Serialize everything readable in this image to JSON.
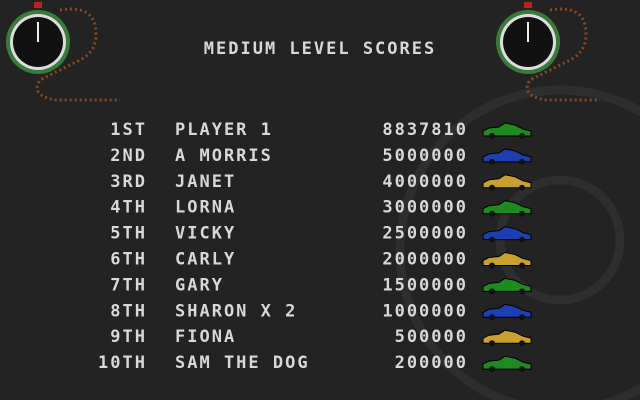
{
  "title": "MEDIUM LEVEL SCORES",
  "rows": [
    {
      "rank": "1ST",
      "name": "PLAYER 1",
      "score": 8837810,
      "car_color": "#1f8a1f"
    },
    {
      "rank": "2ND",
      "name": "A MORRIS",
      "score": 5000000,
      "car_color": "#1d3fb0"
    },
    {
      "rank": "3RD",
      "name": "JANET",
      "score": 4000000,
      "car_color": "#c9a030"
    },
    {
      "rank": "4TH",
      "name": "LORNA",
      "score": 3000000,
      "car_color": "#1f8a1f"
    },
    {
      "rank": "5TH",
      "name": "VICKY",
      "score": 2500000,
      "car_color": "#1d3fb0"
    },
    {
      "rank": "6TH",
      "name": "CARLY",
      "score": 2000000,
      "car_color": "#c9a030"
    },
    {
      "rank": "7TH",
      "name": "GARY",
      "score": 1500000,
      "car_color": "#1f8a1f"
    },
    {
      "rank": "8TH",
      "name": "SHARON X 2",
      "score": 1000000,
      "car_color": "#1d3fb0"
    },
    {
      "rank": "9TH",
      "name": "FIONA",
      "score": 500000,
      "car_color": "#c9a030"
    },
    {
      "rank": "10TH",
      "name": "SAM THE DOG",
      "score": 200000,
      "car_color": "#1f8a1f"
    }
  ]
}
